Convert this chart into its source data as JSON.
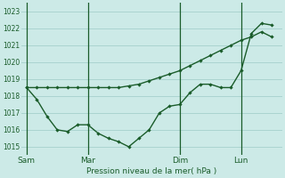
{
  "background_color": "#cceae7",
  "plot_bg_color": "#cceae7",
  "grid_color": "#aad4d0",
  "line_color": "#1a5c2a",
  "title": "Pression niveau de la mer( hPa )",
  "ylim": [
    1014.5,
    1023.5
  ],
  "yticks": [
    1015,
    1016,
    1017,
    1018,
    1019,
    1020,
    1021,
    1022,
    1023
  ],
  "day_labels": [
    "Sam",
    "Mar",
    "Dim",
    "Lun"
  ],
  "day_positions": [
    0,
    6,
    15,
    21
  ],
  "vline_positions": [
    0,
    6,
    15,
    21
  ],
  "xlim": [
    -0.5,
    25
  ],
  "line1_x": [
    0,
    1,
    2,
    3,
    4,
    5,
    6,
    7,
    8,
    9,
    10,
    11,
    12,
    13,
    14,
    15,
    16,
    17,
    18,
    19,
    20,
    21,
    22,
    23,
    24
  ],
  "line1_y": [
    1018.5,
    1017.8,
    1016.8,
    1016.0,
    1015.9,
    1016.3,
    1016.3,
    1015.8,
    1015.5,
    1015.3,
    1015.0,
    1015.5,
    1016.0,
    1017.0,
    1017.4,
    1017.5,
    1018.2,
    1018.7,
    1018.7,
    1018.5,
    1018.5,
    1019.5,
    1021.7,
    1022.3,
    1022.2
  ],
  "line2_x": [
    0,
    1,
    2,
    3,
    4,
    5,
    6,
    7,
    8,
    9,
    10,
    11,
    12,
    13,
    14,
    15,
    16,
    17,
    18,
    19,
    20,
    21,
    22,
    23,
    24
  ],
  "line2_y": [
    1018.5,
    1018.5,
    1018.5,
    1018.5,
    1018.5,
    1018.5,
    1018.5,
    1018.5,
    1018.5,
    1018.5,
    1018.6,
    1018.7,
    1018.9,
    1019.1,
    1019.3,
    1019.5,
    1019.8,
    1020.1,
    1020.4,
    1020.7,
    1021.0,
    1021.3,
    1021.5,
    1021.8,
    1021.5
  ]
}
